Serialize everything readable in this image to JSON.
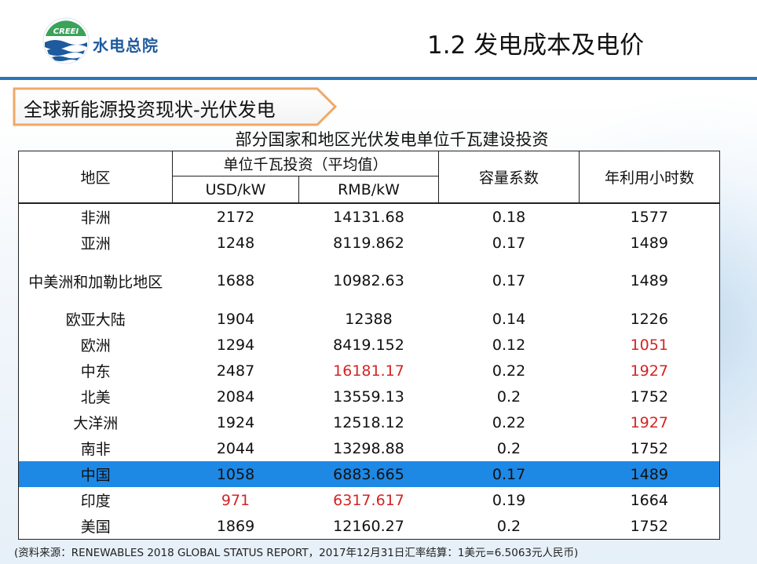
{
  "header": {
    "logo_text": "CREEI",
    "org_name": "水电总院",
    "slide_title": "1.2 发电成本及电价"
  },
  "section": {
    "title": "全球新能源投资现状-光伏发电"
  },
  "table": {
    "title": "部分国家和地区光伏发电单位千瓦建设投资",
    "headers": {
      "region": "地区",
      "investment_group": "单位千瓦投资（平均值）",
      "usd": "USD/kW",
      "rmb": "RMB/kW",
      "capacity_factor": "容量系数",
      "annual_hours": "年利用小时数"
    },
    "rows": [
      {
        "region": "非洲",
        "usd": "2172",
        "rmb": "14131.68",
        "cf": "0.18",
        "hours": "1577"
      },
      {
        "region": "亚洲",
        "usd": "1248",
        "rmb": "8119.862",
        "cf": "0.17",
        "hours": "1489"
      },
      {
        "region": "中美洲和加勒比地区",
        "usd": "1688",
        "rmb": "10982.63",
        "cf": "0.17",
        "hours": "1489"
      },
      {
        "region": "欧亚大陆",
        "usd": "1904",
        "rmb": "12388",
        "cf": "0.14",
        "hours": "1226"
      },
      {
        "region": "欧洲",
        "usd": "1294",
        "rmb": "8419.152",
        "cf": "0.12",
        "hours": "1051"
      },
      {
        "region": "中东",
        "usd": "2487",
        "rmb": "16181.17",
        "cf": "0.22",
        "hours": "1927"
      },
      {
        "region": "北美",
        "usd": "2084",
        "rmb": "13559.13",
        "cf": "0.2",
        "hours": "1752"
      },
      {
        "region": "大洋洲",
        "usd": "1924",
        "rmb": "12518.12",
        "cf": "0.22",
        "hours": "1927"
      },
      {
        "region": "南非",
        "usd": "2044",
        "rmb": "13298.88",
        "cf": "0.2",
        "hours": "1752"
      },
      {
        "region": "中国",
        "usd": "1058",
        "rmb": "6883.665",
        "cf": "0.17",
        "hours": "1489"
      },
      {
        "region": "印度",
        "usd": "971",
        "rmb": "6317.617",
        "cf": "0.19",
        "hours": "1664"
      },
      {
        "region": "美国",
        "usd": "1869",
        "rmb": "12160.27",
        "cf": "0.2",
        "hours": "1752"
      }
    ],
    "highlight_row": "中国",
    "highlight_color": "#1e88e5",
    "emphasis_color": "#d42424"
  },
  "source_note": "(资料来源：RENEWABLES 2018 GLOBAL STATUS REPORT，2017年12月31日汇率结算：1美元=6.5063元人民币)",
  "colors": {
    "accent": "#2b74b8",
    "logo_blue": "#1d5a9e",
    "logo_green": "#3aa35a"
  }
}
